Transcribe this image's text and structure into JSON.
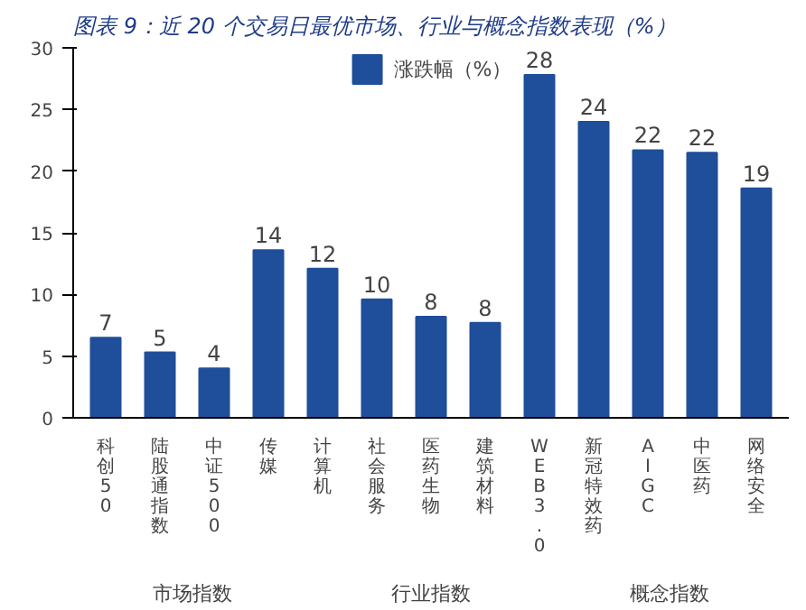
{
  "chart_data": {
    "type": "bar",
    "title": "图表 9：近 20 个交易日最优市场、行业与概念指数表现（%）",
    "categories": [
      "科创50",
      "陆股通指数",
      "中证500",
      "传媒",
      "计算机",
      "社会服务",
      "医药生物",
      "建筑材料",
      "WEB3.0",
      "新冠特效药",
      "AIGC",
      "中医药",
      "网络安全"
    ],
    "series": [
      {
        "name": "涨跌幅（%）",
        "color": "#1f4e9a",
        "values": [
          6.5,
          5.3,
          4.0,
          13.6,
          12.1,
          9.6,
          8.2,
          7.7,
          27.8,
          24.0,
          21.7,
          21.5,
          18.6
        ],
        "value_labels": [
          "7",
          "5",
          "4",
          "14",
          "12",
          "10",
          "8",
          "8",
          "28",
          "24",
          "22",
          "22",
          "19"
        ]
      }
    ],
    "ylim": [
      0,
      30
    ],
    "yticks": [
      0,
      5,
      10,
      15,
      20,
      25,
      30
    ],
    "grid": false,
    "legend": "top",
    "annotations": [
      "市场指数",
      "行业指数",
      "概念指数"
    ]
  }
}
